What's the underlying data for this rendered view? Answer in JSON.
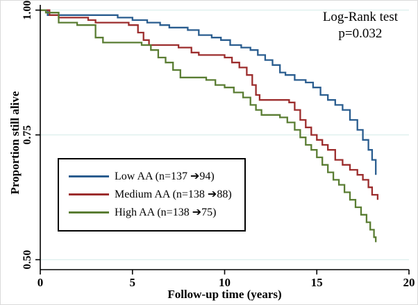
{
  "chart_data": {
    "type": "line",
    "subtype": "kaplan-meier-step",
    "annotation": {
      "line1": "Log-Rank test",
      "line2": "p=0.032"
    },
    "xlabel": "Follow-up time (years)",
    "ylabel": "Proportion still alive",
    "xlim": [
      0,
      20
    ],
    "ylim": [
      0.48,
      1.005
    ],
    "xticks": [
      0,
      5,
      10,
      15,
      20
    ],
    "xtick_labels": [
      "0",
      "5",
      "10",
      "15",
      "20"
    ],
    "yticks": [
      0.5,
      0.75,
      1.0
    ],
    "ytick_labels": [
      "0.50",
      "0.75",
      "1.00"
    ],
    "grid": true,
    "grid_color": "#def0ee",
    "axis_color": "#000000",
    "legend": {
      "position": "lower-left",
      "border": true
    },
    "series": [
      {
        "name": "Low AA",
        "label": "Low AA (n=137 ➔94)",
        "color": "#2a5d8f",
        "points": [
          [
            0,
            1.0
          ],
          [
            0.4,
            0.99
          ],
          [
            4.2,
            0.985
          ],
          [
            5.0,
            0.98
          ],
          [
            5.8,
            0.975
          ],
          [
            6.5,
            0.97
          ],
          [
            7.0,
            0.965
          ],
          [
            8.0,
            0.96
          ],
          [
            8.6,
            0.95
          ],
          [
            9.3,
            0.945
          ],
          [
            9.8,
            0.94
          ],
          [
            10.3,
            0.93
          ],
          [
            10.9,
            0.925
          ],
          [
            11.4,
            0.92
          ],
          [
            11.8,
            0.91
          ],
          [
            12.2,
            0.9
          ],
          [
            12.6,
            0.89
          ],
          [
            13.0,
            0.875
          ],
          [
            13.3,
            0.87
          ],
          [
            13.8,
            0.86
          ],
          [
            14.4,
            0.855
          ],
          [
            14.8,
            0.845
          ],
          [
            15.2,
            0.83
          ],
          [
            15.6,
            0.82
          ],
          [
            16.0,
            0.81
          ],
          [
            16.4,
            0.8
          ],
          [
            16.8,
            0.78
          ],
          [
            17.2,
            0.76
          ],
          [
            17.5,
            0.74
          ],
          [
            17.8,
            0.72
          ],
          [
            18.0,
            0.7
          ],
          [
            18.2,
            0.67
          ]
        ]
      },
      {
        "name": "Medium AA",
        "label": "Medium AA (n=138 ➔88)",
        "color": "#9c2d2d",
        "points": [
          [
            0,
            1.0
          ],
          [
            0.5,
            0.99
          ],
          [
            1.0,
            0.985
          ],
          [
            2.6,
            0.98
          ],
          [
            3.0,
            0.975
          ],
          [
            4.8,
            0.97
          ],
          [
            5.3,
            0.955
          ],
          [
            5.6,
            0.94
          ],
          [
            5.9,
            0.93
          ],
          [
            7.5,
            0.925
          ],
          [
            8.2,
            0.915
          ],
          [
            8.6,
            0.91
          ],
          [
            10.0,
            0.905
          ],
          [
            10.4,
            0.895
          ],
          [
            10.8,
            0.885
          ],
          [
            11.2,
            0.87
          ],
          [
            11.5,
            0.85
          ],
          [
            11.7,
            0.83
          ],
          [
            11.9,
            0.82
          ],
          [
            13.5,
            0.815
          ],
          [
            13.8,
            0.8
          ],
          [
            14.1,
            0.78
          ],
          [
            14.4,
            0.765
          ],
          [
            14.7,
            0.75
          ],
          [
            15.0,
            0.74
          ],
          [
            15.3,
            0.73
          ],
          [
            15.6,
            0.72
          ],
          [
            16.0,
            0.7
          ],
          [
            16.4,
            0.69
          ],
          [
            16.8,
            0.68
          ],
          [
            17.2,
            0.67
          ],
          [
            17.5,
            0.66
          ],
          [
            17.8,
            0.645
          ],
          [
            18.0,
            0.63
          ],
          [
            18.3,
            0.62
          ]
        ]
      },
      {
        "name": "High AA",
        "label": "High AA (n=138 ➔75)",
        "color": "#5a7d33",
        "points": [
          [
            0,
            1.0
          ],
          [
            0.3,
            0.995
          ],
          [
            1.0,
            0.975
          ],
          [
            2.0,
            0.97
          ],
          [
            3.0,
            0.945
          ],
          [
            3.4,
            0.935
          ],
          [
            5.5,
            0.93
          ],
          [
            6.0,
            0.92
          ],
          [
            6.4,
            0.905
          ],
          [
            6.8,
            0.895
          ],
          [
            7.2,
            0.88
          ],
          [
            7.6,
            0.865
          ],
          [
            9.0,
            0.86
          ],
          [
            9.5,
            0.85
          ],
          [
            10.0,
            0.845
          ],
          [
            10.5,
            0.835
          ],
          [
            11.0,
            0.825
          ],
          [
            11.4,
            0.81
          ],
          [
            11.7,
            0.8
          ],
          [
            12.0,
            0.79
          ],
          [
            13.0,
            0.785
          ],
          [
            13.4,
            0.775
          ],
          [
            13.8,
            0.76
          ],
          [
            14.1,
            0.745
          ],
          [
            14.4,
            0.73
          ],
          [
            14.7,
            0.72
          ],
          [
            15.0,
            0.705
          ],
          [
            15.3,
            0.69
          ],
          [
            15.6,
            0.675
          ],
          [
            15.9,
            0.66
          ],
          [
            16.2,
            0.65
          ],
          [
            16.5,
            0.635
          ],
          [
            16.8,
            0.62
          ],
          [
            17.1,
            0.605
          ],
          [
            17.4,
            0.59
          ],
          [
            17.7,
            0.575
          ],
          [
            17.9,
            0.56
          ],
          [
            18.1,
            0.545
          ],
          [
            18.2,
            0.535
          ]
        ]
      }
    ]
  }
}
